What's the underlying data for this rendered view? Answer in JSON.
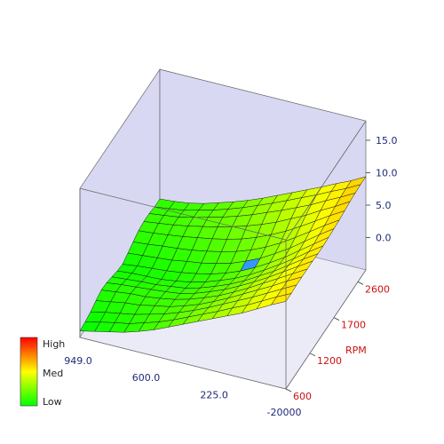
{
  "chart_data": {
    "type": "surface3d",
    "x_ticks": [
      "949.0",
      "600.0",
      "225.0",
      "-20000"
    ],
    "y_ticks": [
      "600",
      "1200",
      "1700",
      "2600"
    ],
    "y_axis_label": "RPM",
    "z_ticks": [
      "0.0",
      "5.0",
      "10.0",
      "15.0"
    ],
    "zlim": [
      -5,
      18
    ],
    "legend": {
      "entries": [
        "High",
        "Med",
        "Low"
      ],
      "colors": [
        "#ff0000",
        "#ffff00",
        "#00ff00"
      ]
    },
    "highlight_cell": {
      "i": 8,
      "j": 8,
      "color": "#3399ff"
    },
    "x_count": 15,
    "y_count": 16,
    "z_values": [
      [
        -4.0,
        -3.8,
        -3.5,
        -3.0,
        -2.6,
        -2.7,
        -3.0,
        -3.3,
        -3.5,
        -3.0,
        -2.5,
        -2.0,
        -1.8,
        -1.8,
        -2.0,
        -2.0
      ],
      [
        -3.5,
        -3.3,
        -3.0,
        -2.6,
        -2.3,
        -2.4,
        -2.8,
        -3.1,
        -3.2,
        -2.8,
        -2.3,
        -1.8,
        -1.5,
        -1.5,
        -1.7,
        -1.8
      ],
      [
        -3.0,
        -2.8,
        -2.6,
        -2.2,
        -2.0,
        -2.2,
        -2.6,
        -3.0,
        -3.0,
        -2.6,
        -2.0,
        -1.5,
        -1.2,
        -1.2,
        -1.4,
        -1.5
      ],
      [
        -2.5,
        -2.4,
        -2.2,
        -2.0,
        -1.9,
        -2.0,
        -2.5,
        -2.9,
        -2.8,
        -2.4,
        -1.8,
        -1.2,
        -0.8,
        -0.7,
        -0.8,
        -1.0
      ],
      [
        -1.8,
        -1.7,
        -1.6,
        -1.5,
        -1.6,
        -1.8,
        -2.2,
        -2.6,
        -2.5,
        -2.0,
        -1.5,
        -0.8,
        -0.3,
        -0.1,
        -0.2,
        -0.3
      ],
      [
        -1.0,
        -1.0,
        -1.0,
        -1.1,
        -1.2,
        -1.5,
        -1.9,
        -2.2,
        -2.1,
        -1.7,
        -1.1,
        -0.4,
        0.2,
        0.5,
        0.5,
        0.4
      ],
      [
        0.0,
        -0.1,
        -0.2,
        -0.4,
        -0.6,
        -0.9,
        -1.3,
        -1.6,
        -1.6,
        -1.2,
        -0.6,
        0.1,
        0.8,
        1.2,
        1.3,
        1.2
      ],
      [
        1.0,
        0.9,
        0.7,
        0.4,
        0.2,
        -0.1,
        -0.5,
        -0.8,
        -0.9,
        -0.6,
        0.0,
        0.7,
        1.5,
        2.0,
        2.2,
        2.1
      ],
      [
        2.0,
        1.9,
        1.7,
        1.4,
        1.1,
        0.8,
        0.4,
        0.1,
        0.0,
        0.3,
        0.8,
        1.5,
        2.3,
        2.9,
        3.1,
        3.1
      ],
      [
        3.0,
        2.9,
        2.8,
        2.5,
        2.2,
        1.9,
        1.5,
        1.2,
        1.1,
        1.3,
        1.8,
        2.5,
        3.2,
        3.8,
        4.1,
        4.1
      ],
      [
        4.0,
        4.0,
        3.9,
        3.7,
        3.4,
        3.1,
        2.8,
        2.5,
        2.4,
        2.6,
        3.0,
        3.6,
        4.3,
        4.8,
        5.1,
        5.1
      ],
      [
        5.0,
        5.0,
        5.0,
        4.9,
        4.7,
        4.4,
        4.1,
        3.9,
        3.8,
        4.0,
        4.4,
        4.9,
        5.4,
        5.8,
        6.1,
        6.1
      ],
      [
        6.2,
        6.2,
        6.2,
        6.1,
        6.0,
        5.8,
        5.6,
        5.4,
        5.4,
        5.6,
        5.9,
        6.3,
        6.7,
        7.0,
        7.2,
        7.2
      ],
      [
        7.4,
        7.4,
        7.4,
        7.4,
        7.3,
        7.2,
        7.1,
        7.0,
        7.0,
        7.2,
        7.4,
        7.7,
        7.9,
        8.1,
        8.2,
        8.2
      ],
      [
        8.5,
        8.5,
        8.6,
        8.6,
        8.6,
        8.6,
        8.5,
        8.5,
        8.6,
        8.7,
        8.8,
        9.0,
        9.2,
        9.3,
        9.4,
        9.4
      ]
    ]
  }
}
